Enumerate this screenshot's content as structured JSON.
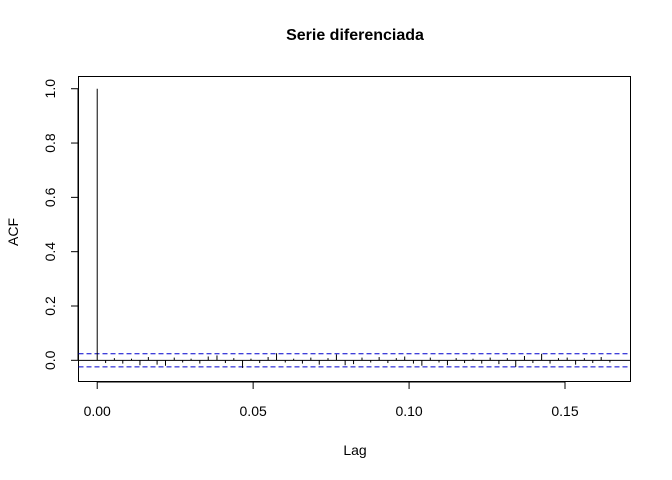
{
  "chart_data": {
    "type": "bar",
    "title": "Serie diferenciada",
    "xlabel": "Lag",
    "ylabel": "ACF",
    "xlim": [
      -0.006,
      0.171
    ],
    "ylim": [
      -0.078,
      1.045
    ],
    "x_ticks": [
      0.0,
      0.05,
      0.1,
      0.15
    ],
    "x_tick_labels": [
      "0.00",
      "0.05",
      "0.10",
      "0.15"
    ],
    "y_ticks": [
      0.0,
      0.2,
      0.4,
      0.6,
      0.8,
      1.0
    ],
    "y_tick_labels": [
      "0.0",
      "0.2",
      "0.4",
      "0.6",
      "0.8",
      "1.0"
    ],
    "confidence_interval": [
      -0.024,
      0.024
    ],
    "confidence_color": "#0000cd",
    "grid": false,
    "lag": [
      0.0,
      0.0027,
      0.0055,
      0.0082,
      0.011,
      0.0137,
      0.0164,
      0.0192,
      0.0219,
      0.0247,
      0.0274,
      0.0301,
      0.0329,
      0.0356,
      0.0384,
      0.0411,
      0.0438,
      0.0466,
      0.0493,
      0.0521,
      0.0548,
      0.0575,
      0.0603,
      0.063,
      0.0658,
      0.0685,
      0.0712,
      0.074,
      0.0767,
      0.0795,
      0.0822,
      0.0849,
      0.0877,
      0.0904,
      0.0932,
      0.0959,
      0.0986,
      0.1014,
      0.1041,
      0.1068,
      0.1096,
      0.1123,
      0.1151,
      0.1178,
      0.1205,
      0.1233,
      0.126,
      0.1288,
      0.1315,
      0.1342,
      0.137,
      0.1397,
      0.1425,
      0.1452,
      0.1479,
      0.1507,
      0.1534,
      0.1562,
      0.1589,
      0.1616,
      0.1644
    ],
    "acf": [
      1.0,
      -0.01,
      0.008,
      -0.012,
      0.006,
      -0.018,
      0.012,
      -0.016,
      -0.02,
      0.01,
      -0.008,
      0.006,
      -0.012,
      0.014,
      0.018,
      -0.01,
      0.008,
      -0.028,
      0.006,
      -0.01,
      0.012,
      0.026,
      -0.008,
      0.006,
      -0.012,
      0.01,
      -0.016,
      0.008,
      0.022,
      -0.018,
      -0.014,
      0.01,
      -0.008,
      0.012,
      -0.01,
      0.008,
      0.014,
      -0.012,
      -0.02,
      0.01,
      -0.008,
      -0.018,
      0.008,
      -0.01,
      0.006,
      -0.012,
      0.01,
      -0.014,
      0.008,
      -0.024,
      0.016,
      -0.01,
      0.024,
      -0.012,
      0.008,
      0.01,
      -0.016,
      0.008,
      -0.01,
      0.012,
      -0.008
    ]
  }
}
